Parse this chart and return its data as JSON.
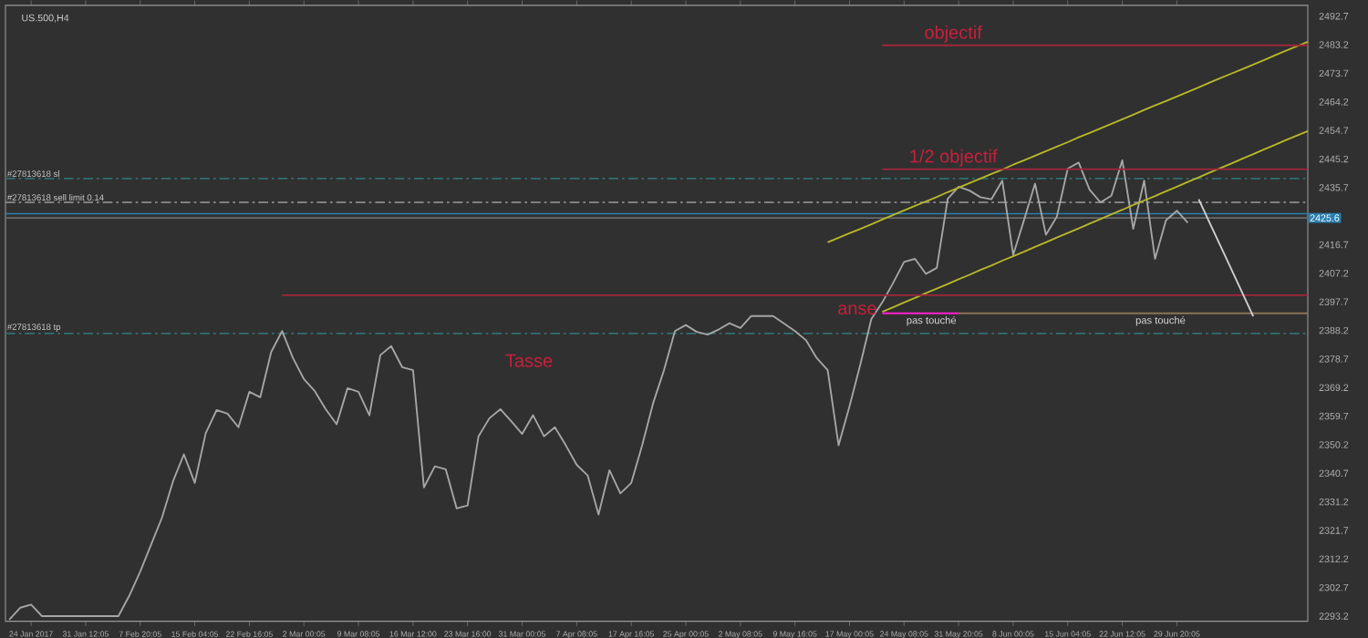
{
  "chart_data": {
    "type": "line",
    "title": "US.500,H4",
    "categories": [
      null,
      null,
      "24 Jan 2017",
      null,
      null,
      null,
      null,
      "31 Jan 12:05",
      null,
      null,
      null,
      null,
      "7 Feb 20:05",
      null,
      null,
      null,
      null,
      "15 Feb 04:05",
      null,
      null,
      null,
      null,
      "22 Feb 16:05",
      null,
      null,
      null,
      null,
      "2 Mar 00:05",
      null,
      null,
      null,
      null,
      "9 Mar 08:05",
      null,
      null,
      null,
      null,
      "16 Mar 12:00",
      null,
      null,
      null,
      null,
      "23 Mar 16:00",
      null,
      null,
      null,
      null,
      "31 Mar 00:05",
      null,
      null,
      null,
      null,
      "7 Apr 08:05",
      null,
      null,
      null,
      null,
      "17 Apr 16:05",
      null,
      null,
      null,
      null,
      "25 Apr 00:05",
      null,
      null,
      null,
      null,
      "2 May 08:05",
      null,
      null,
      null,
      null,
      "9 May 16:05",
      null,
      null,
      null,
      null,
      "17 May 00:05",
      null,
      null,
      null,
      null,
      "24 May 08:05",
      null,
      null,
      null,
      null,
      "31 May 20:05",
      null,
      null,
      null,
      null,
      "8 Jun 00:05",
      null,
      null,
      null,
      null,
      "15 Jun 04:05",
      null,
      null,
      null,
      null,
      "22 Jun 12:05",
      null,
      null,
      null,
      null,
      "29 Jun 20:05",
      null,
      null,
      null,
      null,
      null,
      null,
      null,
      null,
      null,
      null,
      null,
      null
    ],
    "ylim": [
      2291.5,
      2496.3
    ],
    "yticks": [
      2293.2,
      2302.7,
      2312.2,
      2321.7,
      2331.2,
      2340.7,
      2350.2,
      2359.7,
      2369.2,
      2378.7,
      2388.2,
      2397.7,
      2407.2,
      2416.7,
      2435.7,
      2445.2,
      2454.7,
      2464.2,
      2473.7,
      2483.2,
      2492.7
    ],
    "grid": false,
    "marker": "none",
    "line_style": "solid",
    "series": [
      {
        "color": "#a6a6a6",
        "values": [
          2292,
          2296,
          2297,
          2293.2,
          2293.2,
          2293.2,
          2293.2,
          2293.2,
          2293.2,
          2293.2,
          2293.2,
          2300,
          2308,
          2317,
          2326,
          2338,
          2347,
          2337.5,
          2354,
          2361.7,
          2360.5,
          2356,
          2367.8,
          2366,
          2381,
          2388,
          2379,
          2372,
          2368,
          2362,
          2357,
          2369,
          2367.8,
          2360,
          2380,
          2383,
          2376,
          2375,
          2336,
          2343,
          2342,
          2329,
          2330,
          2353,
          2359,
          2362,
          2358,
          2353.8,
          2360,
          2353,
          2356,
          2350,
          2343.5,
          2340,
          2327,
          2341.7,
          2334,
          2337.5,
          2350,
          2364,
          2375,
          2388,
          2390,
          2387.7,
          2386.8,
          2388.5,
          2390.6,
          2389,
          2393,
          2393,
          2393,
          2390.5,
          2388,
          2385,
          2379,
          2375,
          2350,
          2363,
          2377,
          2392,
          2397.5,
          2404,
          2411,
          2412,
          2407,
          2409,
          2432,
          2436,
          2434.7,
          2432.5,
          2431.8,
          2438,
          2413.3,
          2425,
          2437,
          2420,
          2426,
          2442,
          2444,
          2435,
          2430.8,
          2433,
          2444.8,
          2422,
          2438,
          2412,
          2424.8,
          2428,
          2424,
          null,
          null,
          null,
          null,
          null,
          null,
          null,
          null,
          null,
          null,
          null
        ]
      },
      {
        "color": "#b8b82a",
        "values": [
          null,
          null,
          null,
          null,
          null,
          null,
          null,
          null,
          null,
          null,
          null,
          null,
          null,
          null,
          null,
          null,
          null,
          null,
          null,
          null,
          null,
          null,
          null,
          null,
          null,
          null,
          null,
          null,
          null,
          null,
          null,
          null,
          null,
          null,
          null,
          null,
          null,
          null,
          null,
          null,
          null,
          null,
          null,
          null,
          null,
          null,
          null,
          null,
          null,
          null,
          null,
          null,
          null,
          null,
          null,
          null,
          null,
          null,
          null,
          null,
          null,
          null,
          null,
          null,
          null,
          null,
          null,
          null,
          null,
          null,
          null,
          null,
          null,
          null,
          null,
          2417.5,
          2419.0,
          2420.5,
          2422.0,
          2423.5,
          2425.1,
          2426.6,
          2428.1,
          2429.6,
          2431.1,
          2432.6,
          2434.2,
          2435.7,
          2437.2,
          2438.7,
          2440.2,
          2441.7,
          2443.3,
          2444.8,
          2446.3,
          2447.8,
          2449.3,
          2450.8,
          2452.4,
          2453.9,
          2455.4,
          2456.9,
          2458.4,
          2459.9,
          2461.5,
          2463.0,
          2464.5,
          2466.0,
          2467.5,
          2469.0,
          2470.6,
          2472.1,
          2473.6,
          2475.1,
          2476.6,
          2478.1,
          2479.7,
          2481.2,
          2482.7,
          2484.2
        ]
      },
      {
        "color": "#b8b82a",
        "values": [
          null,
          null,
          null,
          null,
          null,
          null,
          null,
          null,
          null,
          null,
          null,
          null,
          null,
          null,
          null,
          null,
          null,
          null,
          null,
          null,
          null,
          null,
          null,
          null,
          null,
          null,
          null,
          null,
          null,
          null,
          null,
          null,
          null,
          null,
          null,
          null,
          null,
          null,
          null,
          null,
          null,
          null,
          null,
          null,
          null,
          null,
          null,
          null,
          null,
          null,
          null,
          null,
          null,
          null,
          null,
          null,
          null,
          null,
          null,
          null,
          null,
          null,
          null,
          null,
          null,
          null,
          null,
          null,
          null,
          null,
          null,
          null,
          null,
          null,
          null,
          null,
          null,
          null,
          null,
          null,
          2394.4,
          2395.9,
          2397.5,
          2399.0,
          2400.6,
          2402.1,
          2403.6,
          2405.2,
          2406.7,
          2408.3,
          2409.8,
          2411.4,
          2412.9,
          2414.4,
          2416.0,
          2417.5,
          2419.1,
          2420.6,
          2422.1,
          2423.7,
          2425.2,
          2426.8,
          2428.3,
          2429.9,
          2431.4,
          2432.9,
          2434.5,
          2436.0,
          2437.6,
          2439.1,
          2440.7,
          2442.2,
          2443.7,
          2445.3,
          2446.8,
          2448.4,
          2449.9,
          2451.5,
          2453.0,
          2454.5
        ]
      },
      {
        "color": "#a0263a",
        "values": [
          null,
          null,
          null,
          null,
          null,
          null,
          null,
          null,
          null,
          null,
          null,
          null,
          null,
          null,
          null,
          null,
          null,
          null,
          null,
          null,
          null,
          null,
          null,
          null,
          null,
          null,
          null,
          null,
          null,
          null,
          null,
          null,
          null,
          null,
          null,
          null,
          null,
          null,
          null,
          null,
          null,
          null,
          null,
          null,
          null,
          null,
          null,
          null,
          null,
          null,
          null,
          null,
          null,
          null,
          null,
          null,
          null,
          null,
          null,
          null,
          null,
          null,
          null,
          null,
          null,
          null,
          null,
          null,
          null,
          null,
          null,
          null,
          null,
          null,
          null,
          null,
          null,
          null,
          null,
          null,
          2483.0,
          2483.0,
          2483.0,
          2483.0,
          2483.0,
          2483.0,
          2483.0,
          2483.0,
          2483.0,
          2483.0,
          2483.0,
          2483.0,
          2483.0,
          2483.0,
          2483.0,
          2483.0,
          2483.0,
          2483.0,
          2483.0,
          2483.0,
          2483.0,
          2483.0,
          2483.0,
          2483.0,
          2483.0,
          2483.0,
          2483.0,
          2483.0,
          2483.0,
          2483.0,
          2483.0,
          2483.0,
          2483.0,
          2483.0,
          2483.0,
          2483.0,
          2483.0,
          2483.0,
          2483.0,
          2483.0
        ]
      },
      {
        "color": "#a0263a",
        "values": [
          null,
          null,
          null,
          null,
          null,
          null,
          null,
          null,
          null,
          null,
          null,
          null,
          null,
          null,
          null,
          null,
          null,
          null,
          null,
          null,
          null,
          null,
          null,
          null,
          null,
          null,
          null,
          null,
          null,
          null,
          null,
          null,
          null,
          null,
          null,
          null,
          null,
          null,
          null,
          null,
          null,
          null,
          null,
          null,
          null,
          null,
          null,
          null,
          null,
          null,
          null,
          null,
          null,
          null,
          null,
          null,
          null,
          null,
          null,
          null,
          null,
          null,
          null,
          null,
          null,
          null,
          null,
          null,
          null,
          null,
          null,
          null,
          null,
          null,
          null,
          null,
          null,
          null,
          null,
          null,
          2441.8,
          2441.8,
          2441.8,
          2441.8,
          2441.8,
          2441.8,
          2441.8,
          2441.8,
          2441.8,
          2441.8,
          2441.8,
          2441.8,
          2441.8,
          2441.8,
          2441.8,
          2441.8,
          2441.8,
          2441.8,
          2441.8,
          2441.8,
          2441.8,
          2441.8,
          2441.8,
          2441.8,
          2441.8,
          2441.8,
          2441.8,
          2441.8,
          2441.8,
          2441.8,
          2441.8,
          2441.8,
          2441.8,
          2441.8,
          2441.8,
          2441.8,
          2441.8,
          2441.8,
          2441.8,
          2441.8
        ]
      },
      {
        "color": "#a0263a",
        "values": [
          null,
          null,
          null,
          null,
          null,
          null,
          null,
          null,
          null,
          null,
          null,
          null,
          null,
          null,
          null,
          null,
          null,
          null,
          null,
          null,
          null,
          null,
          null,
          null,
          null,
          2399.9,
          2399.9,
          2399.9,
          2399.9,
          2399.9,
          2399.9,
          2399.9,
          2399.9,
          2399.9,
          2399.9,
          2399.9,
          2399.9,
          2399.9,
          2399.9,
          2399.9,
          2399.9,
          2399.9,
          2399.9,
          2399.9,
          2399.9,
          2399.9,
          2399.9,
          2399.9,
          2399.9,
          2399.9,
          2399.9,
          2399.9,
          2399.9,
          2399.9,
          2399.9,
          2399.9,
          2399.9,
          2399.9,
          2399.9,
          2399.9,
          2399.9,
          2399.9,
          2399.9,
          2399.9,
          2399.9,
          2399.9,
          2399.9,
          2399.9,
          2399.9,
          2399.9,
          2399.9,
          2399.9,
          2399.9,
          2399.9,
          2399.9,
          2399.9,
          2399.9,
          2399.9,
          2399.9,
          2399.9,
          2399.9,
          2399.9,
          2399.9,
          2399.9,
          2399.9,
          2399.9,
          2399.9,
          2399.9,
          2399.9,
          2399.9,
          2399.9,
          2399.9,
          2399.9,
          2399.9,
          2399.9,
          2399.9,
          2399.9,
          2399.9,
          2399.9,
          2399.9,
          2399.9,
          2399.9,
          2399.9,
          2399.9,
          2399.9,
          2399.9,
          2399.9,
          2399.9,
          2399.9,
          2399.9,
          2399.9,
          2399.9,
          2399.9,
          2399.9,
          2399.9,
          2399.9,
          2399.9,
          2399.9,
          2399.9,
          2399.9
        ]
      },
      {
        "color": "#8b7355",
        "values": [
          null,
          null,
          null,
          null,
          null,
          null,
          null,
          null,
          null,
          null,
          null,
          null,
          null,
          null,
          null,
          null,
          null,
          null,
          null,
          null,
          null,
          null,
          null,
          null,
          null,
          null,
          null,
          null,
          null,
          null,
          null,
          null,
          null,
          null,
          null,
          null,
          null,
          null,
          null,
          null,
          null,
          null,
          null,
          null,
          null,
          null,
          null,
          null,
          null,
          null,
          null,
          null,
          null,
          null,
          null,
          null,
          null,
          null,
          null,
          null,
          null,
          null,
          null,
          null,
          null,
          null,
          null,
          null,
          null,
          null,
          null,
          null,
          null,
          null,
          null,
          null,
          null,
          null,
          null,
          null,
          null,
          null,
          null,
          null,
          null,
          null,
          null,
          2393.9,
          2393.9,
          2393.9,
          2393.9,
          2393.9,
          2393.9,
          2393.9,
          2393.9,
          2393.9,
          2393.9,
          2393.9,
          2393.9,
          2393.9,
          2393.9,
          2393.9,
          2393.9,
          2393.9,
          2393.9,
          2393.9,
          2393.9,
          2393.9,
          2393.9,
          2393.9,
          2393.9,
          2393.9,
          2393.9,
          2393.9,
          2393.9,
          2393.9,
          2393.9,
          2393.9,
          2393.9,
          2393.9
        ]
      },
      {
        "color": "#ff1fcf",
        "values": [
          null,
          null,
          null,
          null,
          null,
          null,
          null,
          null,
          null,
          null,
          null,
          null,
          null,
          null,
          null,
          null,
          null,
          null,
          null,
          null,
          null,
          null,
          null,
          null,
          null,
          null,
          null,
          null,
          null,
          null,
          null,
          null,
          null,
          null,
          null,
          null,
          null,
          null,
          null,
          null,
          null,
          null,
          null,
          null,
          null,
          null,
          null,
          null,
          null,
          null,
          null,
          null,
          null,
          null,
          null,
          null,
          null,
          null,
          null,
          null,
          null,
          null,
          null,
          null,
          null,
          null,
          null,
          null,
          null,
          null,
          null,
          null,
          null,
          null,
          null,
          null,
          null,
          null,
          null,
          null,
          2393.9,
          2393.9,
          2393.9,
          2393.9,
          2393.9,
          2393.9,
          2393.9,
          2393.9,
          null,
          null,
          null,
          null,
          null,
          null,
          null,
          null,
          null,
          null,
          null,
          null,
          null,
          null,
          null,
          null,
          null,
          null,
          null,
          null,
          null,
          null,
          null,
          null,
          null,
          null,
          null,
          null,
          null,
          null,
          null,
          null
        ]
      },
      {
        "color": "#d0d0d0",
        "values": [
          null,
          null,
          null,
          null,
          null,
          null,
          null,
          null,
          null,
          null,
          null,
          null,
          null,
          null,
          null,
          null,
          null,
          null,
          null,
          null,
          null,
          null,
          null,
          null,
          null,
          null,
          null,
          null,
          null,
          null,
          null,
          null,
          null,
          null,
          null,
          null,
          null,
          null,
          null,
          null,
          null,
          null,
          null,
          null,
          null,
          null,
          null,
          null,
          null,
          null,
          null,
          null,
          null,
          null,
          null,
          null,
          null,
          null,
          null,
          null,
          null,
          null,
          null,
          null,
          null,
          null,
          null,
          null,
          null,
          null,
          null,
          null,
          null,
          null,
          null,
          null,
          null,
          null,
          null,
          null,
          null,
          null,
          null,
          null,
          null,
          null,
          null,
          null,
          null,
          null,
          null,
          null,
          null,
          null,
          null,
          null,
          null,
          null,
          null,
          null,
          null,
          null,
          null,
          null,
          null,
          null,
          null,
          null,
          null,
          2431.8,
          2424.0,
          2416.3,
          2408.5,
          2400.7,
          2392.9,
          null,
          null,
          null,
          null,
          null
        ]
      }
    ],
    "ref_lines": [
      {
        "axis": "y",
        "value": 2438.7,
        "label": "#27813618 sl",
        "color": "#2f6f6f",
        "line_style": "dashed"
      },
      {
        "axis": "y",
        "value": 2430.8,
        "label": "#27813618 sell limit 0.14",
        "color": "#9a9a9a",
        "line_style": "dashed"
      },
      {
        "axis": "y",
        "value": 2427.0,
        "color": "#2a7fb0",
        "line_style": "solid"
      },
      {
        "axis": "y",
        "value": 2425.6,
        "label": "2425.6",
        "color": "#6a6a6a",
        "line_style": "solid"
      },
      {
        "axis": "y",
        "value": 2387.2,
        "label": "#27813618 tp",
        "color": "#2f6f6f",
        "line_style": "dashed"
      }
    ],
    "annotations": [
      {
        "text": "objectif",
        "y": 2483.0
      },
      {
        "text": "1/2 objectif",
        "y": 2441.8
      },
      "anse",
      "Tasse",
      {
        "text": "pas touché",
        "y": 2393.9
      },
      {
        "text": "pas touché",
        "y": 2393.9
      }
    ]
  }
}
